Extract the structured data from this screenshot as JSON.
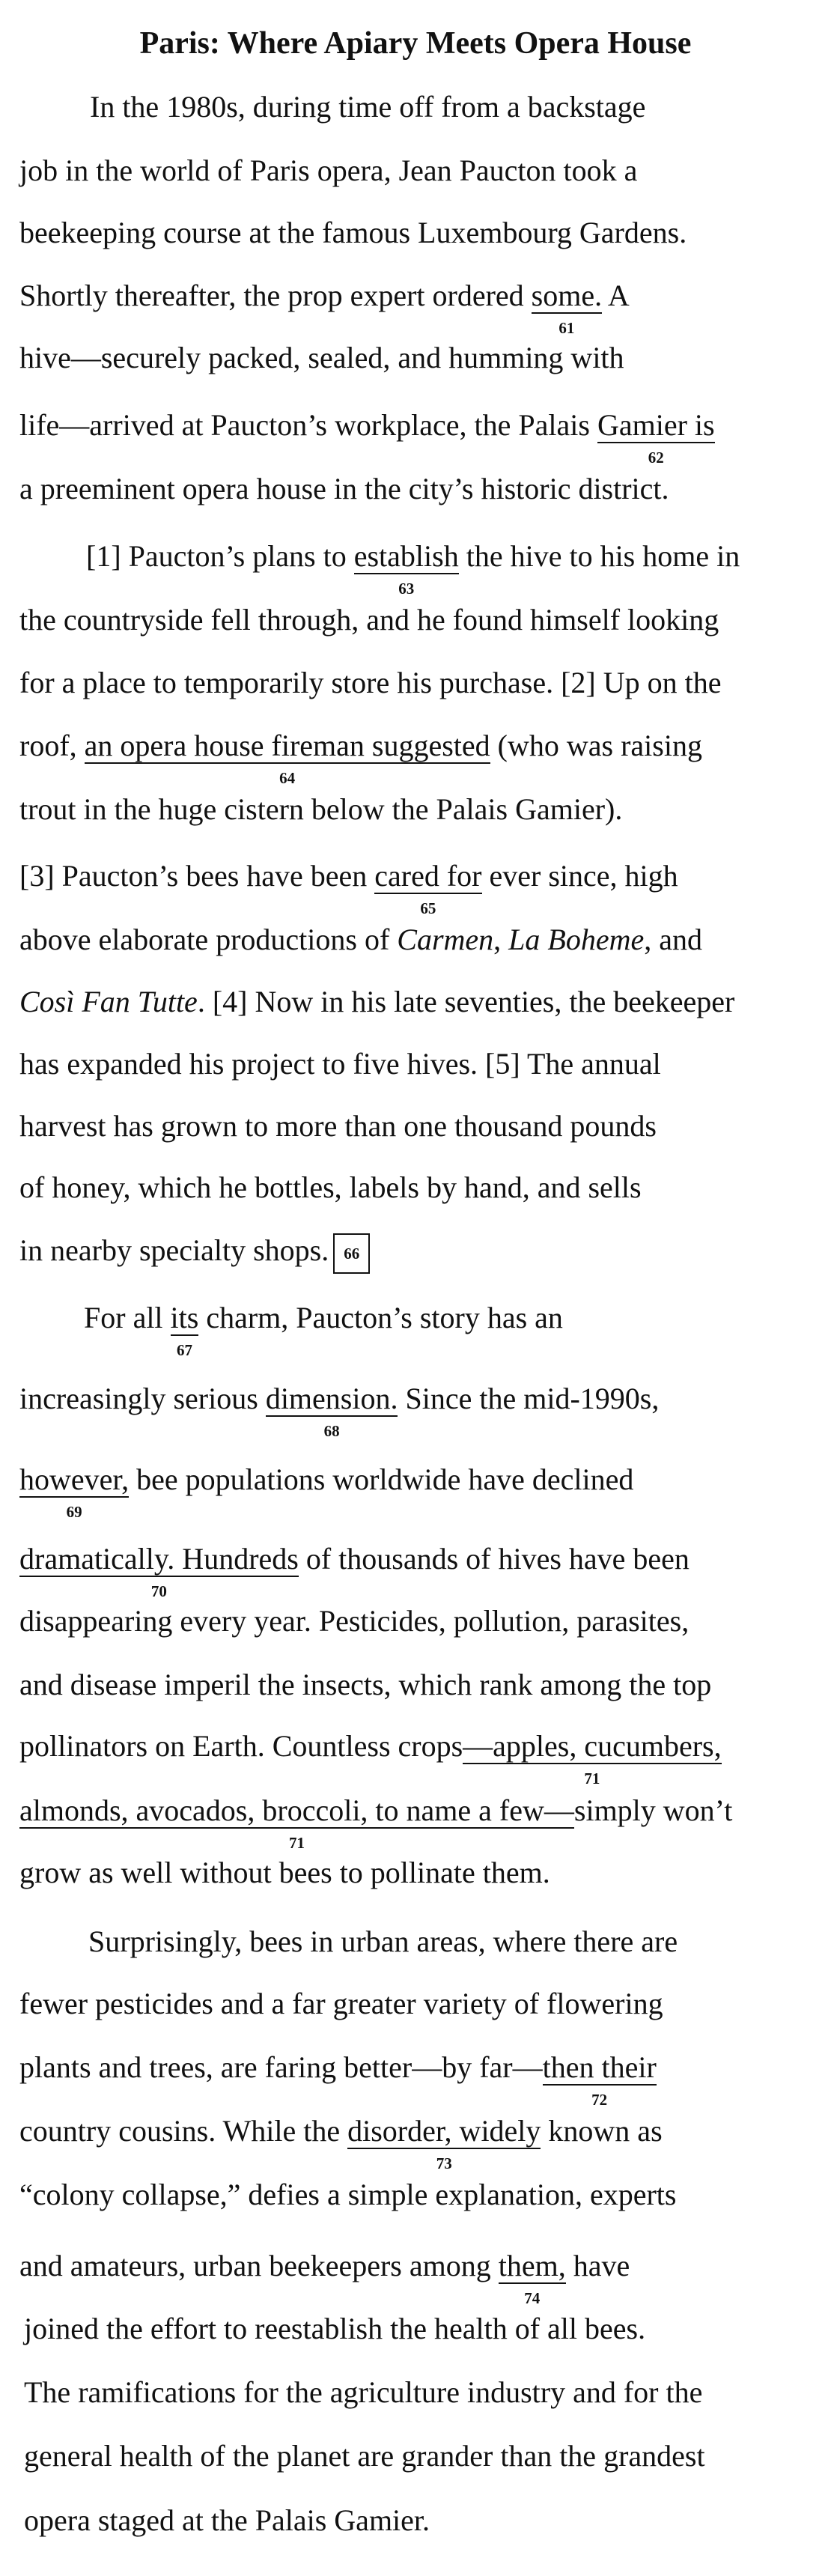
{
  "title": "Paris: Where Apiary Meets Opera House",
  "p1": {
    "l1": "In the 1980s, during time off from a backstage",
    "l2": "job in the world of Paris opera, Jean Paucton took a",
    "l3": "beekeeping course at the famous Luxembourg Gardens.",
    "l4a": "Shortly thereafter, the prop expert ordered ",
    "u61": "some.",
    "l4b": " A",
    "l5": "hive—securely packed, sealed, and humming with",
    "l6a": "life—arrived at Paucton’s workplace, the Palais ",
    "u62": "Gamier is",
    "l7": "a preeminent opera house in the city’s historic district."
  },
  "p2": {
    "l1a": "[1] Paucton’s plans to ",
    "u63": "establish",
    "l1b": " the hive to his home in",
    "l2": "the countryside fell through, and he found himself looking",
    "l3": "for a place to temporarily store his purchase. [2] Up on the",
    "l4a": "roof, ",
    "u64": "an opera house fireman suggested",
    "l4b": " (who was raising",
    "l5": "trout in the huge cistern below the Palais Gamier).",
    "l6a": "[3] Paucton’s bees have been ",
    "u65": "cared for",
    "l6b": " ever since, high",
    "l7a": "above elaborate productions of ",
    "l7i1": "Carmen",
    "l7b": ", ",
    "l7i2": "La Boheme",
    "l7c": ", and",
    "l8i": "Così Fan Tutte",
    "l8a": ". [4] Now in his late seventies, the beekeeper",
    "l9": "has expanded his project to five hives. [5] The annual",
    "l10": "harvest has grown to more than one thousand pounds",
    "l11": "of honey, which he bottles, labels by hand, and sells",
    "l12": "in nearby specialty shops."
  },
  "p3": {
    "l1a": "For all ",
    "u67": "its",
    "l1b": " charm, Paucton’s story has an",
    "l2a": "increasingly serious ",
    "u68": "dimension.",
    "l2b": " Since the mid-1990s,",
    "u69": "however,",
    "l3b": " bee populations worldwide have declined",
    "u70": "dramatically. Hundreds",
    "l4b": " of thousands of hives have been",
    "l5": "disappearing every year. Pesticides, pollution, parasites,",
    "l6": "and disease imperil the insects, which rank among the top",
    "l7a": "pollinators on Earth. Countless crops",
    "u71a": "—apples, cucumbers,",
    "u71b": "almonds, avocados, broccoli, to name a few—",
    "l8b": "simply won’t",
    "l9": "grow as well without bees to pollinate them."
  },
  "p4": {
    "l1": "Surprisingly, bees in urban areas, where there are",
    "l2": "fewer pesticides and a far greater variety of flowering",
    "l3a": "plants and trees, are faring better—by far—",
    "u72": "then their",
    "l4": "country cousins. While the ",
    "u73": "disorder, widely",
    "l4b": " known as",
    "l5": "“colony collapse,” defies a simple explanation, experts",
    "l6a": "and amateurs, urban beekeepers among ",
    "u74": "them,",
    "l6b": " have",
    "l7": "joined the effort to reestablish the health of all bees.",
    "l8": "The ramifications for the agriculture industry and for the",
    "l9": "general health of the planet are grander than the grandest",
    "l10": "opera staged at the Palais Gamier."
  },
  "numbers": {
    "n61": "61",
    "n62": "62",
    "n63": "63",
    "n64": "64",
    "n65": "65",
    "n66": "66",
    "n67": "67",
    "n68": "68",
    "n69": "69",
    "n70": "70",
    "n71a": "71",
    "n71b": "71",
    "n72": "72",
    "n73": "73",
    "n74": "74"
  }
}
